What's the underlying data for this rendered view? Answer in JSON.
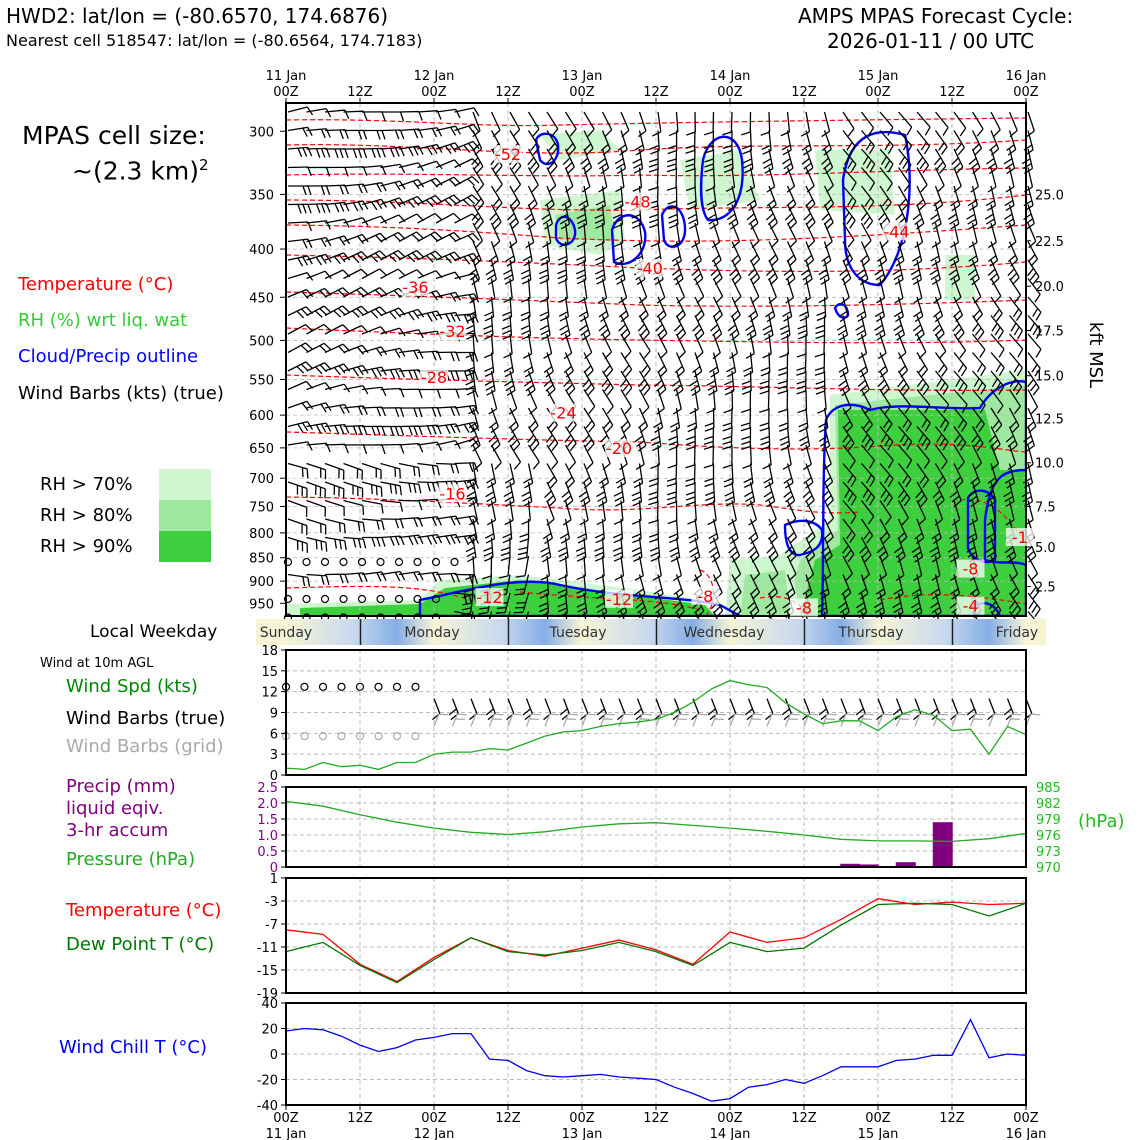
{
  "header": {
    "station": "HWD2: lat/lon = (-80.6570, 174.6876)",
    "nearest": "Nearest cell 518547: lat/lon = (-80.6564, 174.7183)",
    "cycle_title": "AMPS MPAS Forecast Cycle:",
    "cycle_value": "2026-01-11 / 00 UTC"
  },
  "left_panel": {
    "cell_size_label": "MPAS cell size:",
    "cell_size_value": "~(2.3 km)",
    "cell_size_exp": "2",
    "legend_temperature": "Temperature (°C)",
    "legend_rh": "RH (%) wrt liq. wat",
    "legend_cloud": "Cloud/Precip outline",
    "legend_wind": "Wind Barbs (kts) (true)",
    "rh_levels": [
      "RH > 70%",
      "RH > 80%",
      "RH > 90%"
    ],
    "rh_colors": [
      "#cff7cf",
      "#9fe89f",
      "#3ecf3e"
    ],
    "local_weekday_label": "Local Weekday",
    "wind_10m_label": "Wind at 10m AGL",
    "wind_spd_label": "Wind Spd (kts)",
    "wind_barbs_true_label": "Wind Barbs (true)",
    "wind_barbs_grid_label": "Wind Barbs (grid)",
    "precip_label_1": "Precip (mm)",
    "precip_label_2": "liquid eqiv.",
    "precip_label_3": "3-hr accum",
    "pressure_label": "Pressure (hPa)",
    "temp_label": "Temperature (°C)",
    "dew_label": "Dew Point T (°C)",
    "windchill_label": "Wind Chill T (°C)"
  },
  "time_axis": {
    "ticks": [
      "00Z",
      "12Z",
      "00Z",
      "12Z",
      "00Z",
      "12Z",
      "00Z",
      "12Z",
      "00Z",
      "12Z",
      "00Z"
    ],
    "dates": [
      "11 Jan",
      "",
      "12 Jan",
      "",
      "13 Jan",
      "",
      "14 Jan",
      "",
      "15 Jan",
      "",
      "16 Jan"
    ],
    "hours": [
      0,
      12,
      24,
      36,
      48,
      60,
      72,
      84,
      96,
      108,
      120
    ]
  },
  "weekdays": [
    "Sunday",
    "Monday",
    "Tuesday",
    "Wednesday",
    "Thursday",
    "Friday"
  ],
  "colors": {
    "temperature": "#ff0000",
    "rh": "#33cc33",
    "cloud": "#0000ff",
    "pressure": "#22aa22",
    "precip": "#800080",
    "dewpoint": "#007700",
    "windchill": "#0000ee",
    "grid_barbs": "#aaaaaa"
  },
  "chart_data": [
    {
      "type": "heatmap",
      "name": "cross-section",
      "ylabel": "",
      "y_right_label": "kft MSL",
      "pressure_ticks": [
        300,
        350,
        400,
        450,
        500,
        550,
        600,
        650,
        700,
        750,
        800,
        850,
        900,
        950
      ],
      "kft_ticks": [
        "25.0",
        "22.5",
        "20.0",
        "17.5",
        "15.0",
        "12.5",
        "10.0",
        "7.5",
        "5.0",
        "2.5"
      ],
      "kft_pressures": [
        350,
        392,
        438,
        488,
        545,
        605,
        674,
        750,
        828,
        912
      ],
      "temperature_labels": [
        {
          "value": "-52",
          "hour": 36,
          "p": 318
        },
        {
          "value": "-48",
          "hour": 57,
          "p": 357
        },
        {
          "value": "-44",
          "hour": 99,
          "p": 384
        },
        {
          "value": "-40",
          "hour": 59,
          "p": 420
        },
        {
          "value": "-36",
          "hour": 21,
          "p": 440
        },
        {
          "value": "-32",
          "hour": 27,
          "p": 490
        },
        {
          "value": "-28",
          "hour": 24,
          "p": 548
        },
        {
          "value": "-24",
          "hour": 45,
          "p": 598
        },
        {
          "value": "-20",
          "hour": 54,
          "p": 652
        },
        {
          "value": "-16",
          "hour": 27,
          "p": 728
        },
        {
          "value": "-12",
          "hour": 33,
          "p": 938
        },
        {
          "value": "-12",
          "hour": 54,
          "p": 942
        },
        {
          "value": "-8",
          "hour": 68,
          "p": 935
        },
        {
          "value": "-8",
          "hour": 84,
          "p": 962
        },
        {
          "value": "-8",
          "hour": 111,
          "p": 875
        },
        {
          "value": "-4",
          "hour": 111,
          "p": 958
        },
        {
          "value": "-1",
          "hour": 119,
          "p": 810
        }
      ]
    },
    {
      "type": "line",
      "name": "wind-speed",
      "ylim": [
        0,
        18
      ],
      "yticks": [
        "18",
        "15",
        "12",
        "9",
        "6",
        "3",
        "0"
      ],
      "x": [
        0,
        3,
        6,
        9,
        12,
        15,
        18,
        21,
        24,
        27,
        30,
        33,
        36,
        39,
        42,
        45,
        48,
        51,
        54,
        57,
        60,
        63,
        66,
        69,
        72,
        75,
        78,
        81,
        84,
        87,
        90,
        93,
        96,
        99,
        102,
        105,
        108,
        111,
        114,
        117,
        120
      ],
      "series": [
        {
          "name": "Wind Spd (kts)",
          "values": [
            1,
            0.8,
            1.8,
            1.2,
            1.4,
            0.8,
            1.8,
            1.8,
            3,
            3.3,
            3.3,
            3.8,
            3.6,
            4.6,
            5.6,
            6.2,
            6.4,
            7,
            7.4,
            7.6,
            8,
            9,
            10.5,
            12.4,
            13.6,
            13,
            12.6,
            10.4,
            8.8,
            7.4,
            7.8,
            7.8,
            6.4,
            8.4,
            9.4,
            8.6,
            6.4,
            6.6,
            3,
            7,
            5.8
          ]
        }
      ]
    },
    {
      "type": "bar",
      "name": "precip-pressure",
      "ylim": [
        0,
        2.5
      ],
      "yticks": [
        "2.5",
        "2.0",
        "1.5",
        "1.0",
        "0.5",
        "0"
      ],
      "y2_ticks": [
        "985",
        "982",
        "979",
        "976",
        "973",
        "970"
      ],
      "y2_label": "(hPa)",
      "series": [
        {
          "name": "Precip (mm)",
          "x": [
            91.5,
            94.5,
            100.5,
            106.5
          ],
          "values": [
            0.1,
            0.08,
            0.15,
            1.4
          ]
        },
        {
          "name": "Pressure (hPa)",
          "x": [
            0,
            6,
            12,
            18,
            24,
            30,
            36,
            42,
            48,
            54,
            60,
            66,
            72,
            78,
            84,
            90,
            96,
            102,
            108,
            114,
            120
          ],
          "values": [
            982.3,
            981.4,
            979.8,
            978.4,
            977.3,
            976.5,
            976.1,
            976.6,
            977.5,
            978.1,
            978.3,
            977.8,
            977.3,
            976.7,
            976.0,
            975.2,
            974.9,
            974.9,
            974.8,
            975.3,
            976.3
          ]
        }
      ]
    },
    {
      "type": "line",
      "name": "temperature-dewpoint",
      "ylim": [
        -19,
        1
      ],
      "yticks": [
        "1",
        "-3",
        "-7",
        "-11",
        "-15",
        "-19"
      ],
      "x": [
        0,
        6,
        12,
        18,
        24,
        30,
        36,
        42,
        48,
        54,
        60,
        66,
        72,
        78,
        84,
        90,
        96,
        102,
        108,
        114,
        120
      ],
      "series": [
        {
          "name": "Temperature (°C)",
          "values": [
            -8,
            -8.8,
            -14,
            -17,
            -12.8,
            -9.4,
            -11.6,
            -12.6,
            -11.2,
            -9.8,
            -11.5,
            -14,
            -8.4,
            -10.2,
            -9.4,
            -6.2,
            -2.6,
            -3.6,
            -3.2,
            -3.6,
            -3.4
          ]
        },
        {
          "name": "Dew Point T (°C)",
          "values": [
            -11.8,
            -10.2,
            -14.2,
            -17.2,
            -13.2,
            -9.4,
            -11.8,
            -12.4,
            -11.6,
            -10.2,
            -11.8,
            -14.2,
            -10.2,
            -11.8,
            -11.2,
            -7.2,
            -3.6,
            -3.4,
            -3.6,
            -5.6,
            -3.4
          ]
        }
      ]
    },
    {
      "type": "line",
      "name": "wind-chill",
      "ylim": [
        -40,
        40
      ],
      "yticks": [
        "40",
        "20",
        "0",
        "-20",
        "-40"
      ],
      "x": [
        0,
        3,
        6,
        9,
        12,
        15,
        18,
        21,
        24,
        27,
        30,
        33,
        36,
        39,
        42,
        45,
        48,
        51,
        54,
        57,
        60,
        63,
        66,
        69,
        72,
        75,
        78,
        81,
        84,
        87,
        90,
        93,
        96,
        99,
        102,
        105,
        108,
        111,
        114,
        117,
        120
      ],
      "series": [
        {
          "name": "Wind Chill T (°C)",
          "values": [
            18,
            20,
            19,
            14,
            7,
            2,
            5,
            11,
            13,
            16,
            16,
            -4,
            -5,
            -13,
            -17,
            -18,
            -17,
            -16,
            -18,
            -19,
            -20,
            -26,
            -31,
            -37,
            -35,
            -26,
            -24,
            -20,
            -23,
            -17,
            -10,
            -10,
            -10,
            -5,
            -4,
            -1,
            -1,
            27,
            -3,
            0,
            -1
          ]
        }
      ]
    }
  ]
}
